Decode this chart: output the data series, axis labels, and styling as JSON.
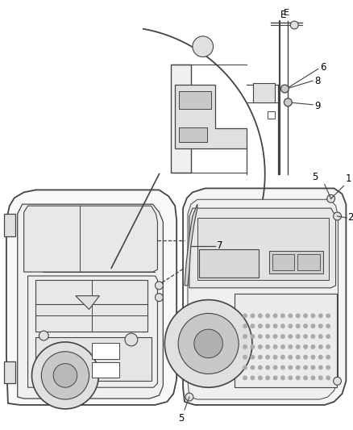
{
  "background_color": "#ffffff",
  "fig_width": 4.38,
  "fig_height": 5.33,
  "dpi": 100,
  "label_fontsize": 8.5,
  "line_color": "#444444",
  "outline_color": "#444444",
  "fill_light": "#f0f0f0",
  "fill_mid": "#e0e0e0",
  "fill_dark": "#c8c8c8"
}
